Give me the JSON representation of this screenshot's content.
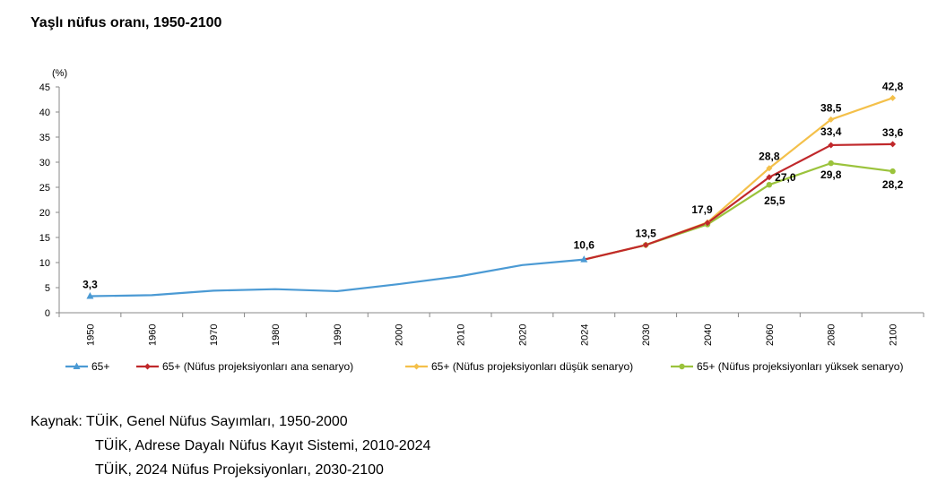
{
  "title": "Yaşlı nüfus oranı, 1950-2100",
  "chart_data": {
    "type": "line",
    "unit": "(%)",
    "categories": [
      "1950",
      "1960",
      "1970",
      "1980",
      "1990",
      "2000",
      "2010",
      "2020",
      "2024",
      "2030",
      "2040",
      "2060",
      "2080",
      "2100"
    ],
    "ylim": [
      0,
      45
    ],
    "yticks": [
      0,
      5,
      10,
      15,
      20,
      25,
      30,
      35,
      40,
      45
    ],
    "grid": false,
    "legend_position": "bottom",
    "series": [
      {
        "name": "65+",
        "color": "#4b9ad4",
        "marker": "triangle",
        "values": [
          3.3,
          3.5,
          4.4,
          4.7,
          4.3,
          5.7,
          7.3,
          9.5,
          10.6,
          null,
          null,
          null,
          null,
          null
        ]
      },
      {
        "name": "65+ (Nüfus projeksiyonları ana senaryo)",
        "color": "#c0282b",
        "marker": "diamond",
        "values": [
          null,
          null,
          null,
          null,
          null,
          null,
          null,
          null,
          10.6,
          13.5,
          17.9,
          27.0,
          33.4,
          33.6
        ]
      },
      {
        "name": "65+ (Nüfus projeksiyonları düşük senaryo)",
        "color": "#f4c04a",
        "marker": "diamond",
        "values": [
          null,
          null,
          null,
          null,
          null,
          null,
          null,
          null,
          10.6,
          13.5,
          18.0,
          28.8,
          38.5,
          42.8
        ]
      },
      {
        "name": "65+ (Nüfus projeksiyonları yüksek senaryo)",
        "color": "#9bc33c",
        "marker": "circle",
        "values": [
          null,
          null,
          null,
          null,
          null,
          null,
          null,
          null,
          10.6,
          13.5,
          17.6,
          25.5,
          29.8,
          28.2
        ]
      }
    ],
    "data_labels": [
      {
        "series": 0,
        "index": 0,
        "text": "3,3"
      },
      {
        "series": 0,
        "index": 8,
        "text": "10,6"
      },
      {
        "series": 1,
        "index": 9,
        "text": "13,5"
      },
      {
        "series": 1,
        "index": 10,
        "text": "17,9"
      },
      {
        "series": 2,
        "index": 11,
        "text": "28,8"
      },
      {
        "series": 1,
        "index": 11,
        "text": "27,0"
      },
      {
        "series": 3,
        "index": 11,
        "text": "25,5"
      },
      {
        "series": 2,
        "index": 12,
        "text": "38,5"
      },
      {
        "series": 1,
        "index": 12,
        "text": "33,4"
      },
      {
        "series": 3,
        "index": 12,
        "text": "29,8"
      },
      {
        "series": 2,
        "index": 13,
        "text": "42,8"
      },
      {
        "series": 1,
        "index": 13,
        "text": "33,6"
      },
      {
        "series": 3,
        "index": 13,
        "text": "28,2"
      }
    ]
  },
  "source": {
    "prefix": "Kaynak: ",
    "lines": [
      "TÜİK, Genel Nüfus Sayımları, 1950-2000",
      "TÜİK, Adrese Dayalı Nüfus Kayıt Sistemi, 2010-2024",
      "TÜİK, 2024 Nüfus Projeksiyonları, 2030-2100"
    ]
  }
}
